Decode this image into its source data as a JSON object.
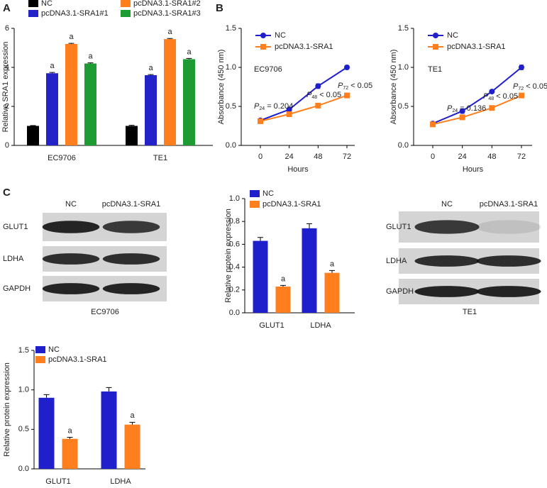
{
  "panel_labels": [
    "A",
    "B",
    "C"
  ],
  "chart_data": [
    {
      "type": "bar",
      "ylabel": "Relative SRA1 expression",
      "categories": [
        "EC9706",
        "TE1"
      ],
      "ylim": [
        0,
        6
      ],
      "yticks": [
        0,
        2,
        4,
        6
      ],
      "series": [
        {
          "name": "NC",
          "color": "#000000",
          "values": [
            1.0,
            1.0
          ],
          "errors": [
            0.02,
            0.03
          ]
        },
        {
          "name": "pcDNA3.1-SRA1#1",
          "color": "#2323c8",
          "values": [
            3.7,
            3.6
          ],
          "errors": [
            0.04,
            0.03
          ],
          "annotations": [
            "a",
            "a"
          ]
        },
        {
          "name": "pcDNA3.1-SRA1#2",
          "color": "#ff7f1e",
          "values": [
            5.2,
            5.45
          ],
          "errors": [
            0.03,
            0.03
          ],
          "annotations": [
            "a",
            "a"
          ]
        },
        {
          "name": "pcDNA3.1-SRA1#3",
          "color": "#1e9b32",
          "values": [
            4.2,
            4.42
          ],
          "errors": [
            0.03,
            0.04
          ],
          "annotations": [
            "a",
            "a"
          ]
        }
      ]
    },
    {
      "type": "line",
      "label": "EC9706",
      "xlabel": "Hours",
      "ylabel": "Absorbance (450 nm)",
      "x": [
        0,
        24,
        48,
        72
      ],
      "xticks": [
        0,
        24,
        48,
        72
      ],
      "ylim": [
        0,
        1.5
      ],
      "yticks": [
        {
          "value": 0,
          "label": "0.0"
        },
        0.5,
        {
          "value": 1,
          "label": "1.0"
        },
        1.5
      ],
      "series": [
        {
          "name": "NC",
          "color": "#1f1fcc",
          "marker": "circle",
          "values": [
            0.32,
            0.46,
            0.76,
            1.0
          ],
          "errors": [
            0.01,
            0.015,
            0.03,
            0.025
          ]
        },
        {
          "name": "pcDNA3.1-SRA1",
          "color": "#ff7f1e",
          "marker": "square",
          "values": [
            0.31,
            0.4,
            0.51,
            0.64
          ],
          "errors": [
            0.01,
            0.01,
            0.015,
            0.015
          ]
        }
      ],
      "p_values": [
        {
          "symbol": "P",
          "subscript": "24",
          "text": " = 0.204"
        },
        {
          "symbol": "P",
          "subscript": "48",
          "text": " < 0.05"
        },
        {
          "symbol": "P",
          "subscript": "72",
          "text": " < 0.05"
        }
      ]
    },
    {
      "type": "line",
      "label": "TE1",
      "xlabel": "Hours",
      "ylabel": "Absorbance (450 nm)",
      "x": [
        0,
        24,
        48,
        72
      ],
      "xticks": [
        0,
        24,
        48,
        72
      ],
      "ylim": [
        0,
        1.5
      ],
      "yticks": [
        {
          "value": 0,
          "label": "0.0"
        },
        0.5,
        {
          "value": 1,
          "label": "1.0"
        },
        1.5
      ],
      "series": [
        {
          "name": "NC",
          "color": "#1f1fcc",
          "marker": "circle",
          "values": [
            0.28,
            0.44,
            0.69,
            1.0
          ],
          "errors": [
            0.01,
            0.03,
            0.01,
            0.03
          ]
        },
        {
          "name": "pcDNA3.1-SRA1",
          "color": "#ff7f1e",
          "marker": "square",
          "values": [
            0.27,
            0.36,
            0.48,
            0.64
          ],
          "errors": [
            0.01,
            0.015,
            0.02,
            0.015
          ]
        }
      ],
      "p_values": [
        {
          "symbol": "P",
          "subscript": "24",
          "text": " = 0.136"
        },
        {
          "symbol": "P",
          "subscript": "48",
          "text": " < 0.05"
        },
        {
          "symbol": "P",
          "subscript": "72",
          "text": " < 0.05"
        }
      ]
    },
    {
      "type": "bar",
      "ylabel": "Relative protein expression",
      "categories": [
        "GLUT1",
        "LDHA"
      ],
      "ylim": [
        0,
        1
      ],
      "yticks": [
        {
          "value": 0,
          "label": "0.0"
        },
        0.2,
        0.4,
        0.6,
        0.8,
        {
          "value": 1,
          "label": "1.0"
        }
      ],
      "series": [
        {
          "name": "NC",
          "color": "#1f1fcc",
          "values": [
            0.63,
            0.74
          ],
          "errors": [
            0.03,
            0.04
          ]
        },
        {
          "name": "pcDNA3.1-SRA1",
          "color": "#ff7f1e",
          "values": [
            0.23,
            0.35
          ],
          "errors": [
            0.01,
            0.02
          ],
          "annotations": [
            "a",
            "a"
          ]
        }
      ]
    },
    {
      "type": "bar",
      "ylabel": "Relative protein expression",
      "categories": [
        "GLUT1",
        "LDHA"
      ],
      "ylim": [
        0,
        1.5
      ],
      "yticks": [
        {
          "value": 0,
          "label": "0.0"
        },
        0.5,
        {
          "value": 1,
          "label": "1.0"
        },
        1.5
      ],
      "series": [
        {
          "name": "NC",
          "color": "#1f1fcc",
          "values": [
            0.9,
            0.98
          ],
          "errors": [
            0.04,
            0.05
          ]
        },
        {
          "name": "pcDNA3.1-SRA1",
          "color": "#ff7f1e",
          "values": [
            0.38,
            0.56
          ],
          "errors": [
            0.02,
            0.03
          ],
          "annotations": [
            "a",
            "a"
          ]
        }
      ]
    }
  ],
  "blots": [
    {
      "columns": [
        "NC",
        "pcDNA3.1-SRA1"
      ],
      "rows": [
        "GLUT1",
        "LDHA",
        "GAPDH"
      ],
      "caption": "EC9706"
    },
    {
      "columns": [
        "NC",
        "pcDNA3.1-SRA1"
      ],
      "rows": [
        "GLUT1",
        "LDHA",
        "GAPDH"
      ],
      "caption": "TE1"
    }
  ]
}
